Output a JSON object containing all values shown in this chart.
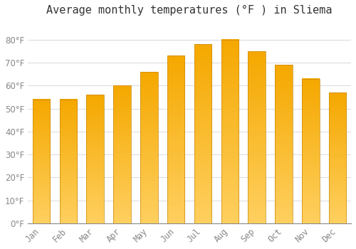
{
  "title": "Average monthly temperatures (°F ) in Sliema",
  "months": [
    "Jan",
    "Feb",
    "Mar",
    "Apr",
    "May",
    "Jun",
    "Jul",
    "Aug",
    "Sep",
    "Oct",
    "Nov",
    "Dec"
  ],
  "values": [
    54,
    54,
    56,
    60,
    66,
    73,
    78,
    80,
    75,
    69,
    63,
    57
  ],
  "bar_color_top": "#F5A800",
  "bar_color_bottom": "#FFD060",
  "bar_edge_color": "#C8890A",
  "background_color": "#FFFFFF",
  "plot_bg_color": "#FFFFFF",
  "grid_color": "#DDDDDD",
  "text_color": "#888888",
  "title_color": "#333333",
  "ylim": [
    0,
    88
  ],
  "yticks": [
    0,
    10,
    20,
    30,
    40,
    50,
    60,
    70,
    80
  ],
  "ylabel_suffix": "°F",
  "title_fontsize": 11,
  "tick_fontsize": 8.5,
  "bar_width": 0.65
}
